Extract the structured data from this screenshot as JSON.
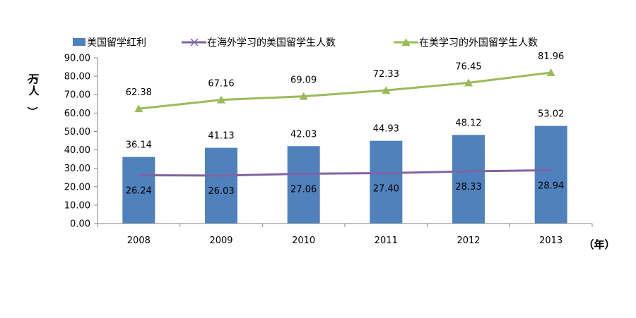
{
  "chart_data": {
    "type": "bar",
    "categories": [
      "2008",
      "2009",
      "2010",
      "2011",
      "2012",
      "2013"
    ],
    "series": [
      {
        "name": "美国留学红利",
        "type": "bar",
        "color": "#4f81bd",
        "values": [
          36.14,
          41.13,
          42.03,
          44.93,
          48.12,
          53.02
        ]
      },
      {
        "name": "在海外学习的美国留学生人数",
        "type": "line",
        "marker": "x",
        "color": "#8064a2",
        "values": [
          26.24,
          26.03,
          27.06,
          27.4,
          28.33,
          28.94
        ]
      },
      {
        "name": "在美学习的外国留学生人数",
        "type": "line",
        "marker": "triangle",
        "color": "#9bbb59",
        "values": [
          62.38,
          67.16,
          69.09,
          72.33,
          76.45,
          81.96
        ]
      }
    ],
    "ylabel": "（万人）",
    "xlabel": "（年）",
    "ylim": [
      0,
      90
    ],
    "ytick_step": 10,
    "ytick_decimals": 2,
    "grid": false,
    "legend": "top"
  }
}
